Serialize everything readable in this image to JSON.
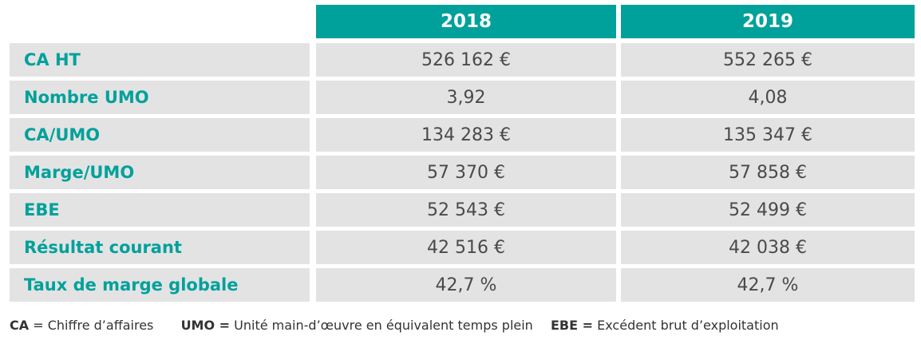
{
  "table": {
    "columns": [
      "2018",
      "2019"
    ],
    "rows": [
      {
        "label": "CA HT",
        "v2018": "526 162 €",
        "v2019": "552 265 €"
      },
      {
        "label": "Nombre UMO",
        "v2018": "3,92",
        "v2019": "4,08"
      },
      {
        "label": "CA/UMO",
        "v2018": "134 283 €",
        "v2019": "135 347 €"
      },
      {
        "label": "Marge/UMO",
        "v2018": "57 370 €",
        "v2019": "57 858 €"
      },
      {
        "label": "EBE",
        "v2018": "52 543 €",
        "v2019": "52 499 €"
      },
      {
        "label": "Résultat courant",
        "v2018": "42 516 €",
        "v2019": "42 038 €"
      },
      {
        "label": "Taux de marge globale",
        "v2018": "42,7 %",
        "v2019": "42,7 %"
      }
    ]
  },
  "legend": [
    {
      "abbr": "CA",
      "text": "= Chiffre d’affaires"
    },
    {
      "abbr": "UMO =",
      "text": "Unité main-d’œuvre en équivalent temps plein"
    },
    {
      "abbr": "EBE =",
      "text": "Excédent brut d’exploitation"
    }
  ],
  "colors": {
    "accent": "#00a19a",
    "cell_bg": "#e3e3e4",
    "value_text": "#4a4a4a"
  }
}
